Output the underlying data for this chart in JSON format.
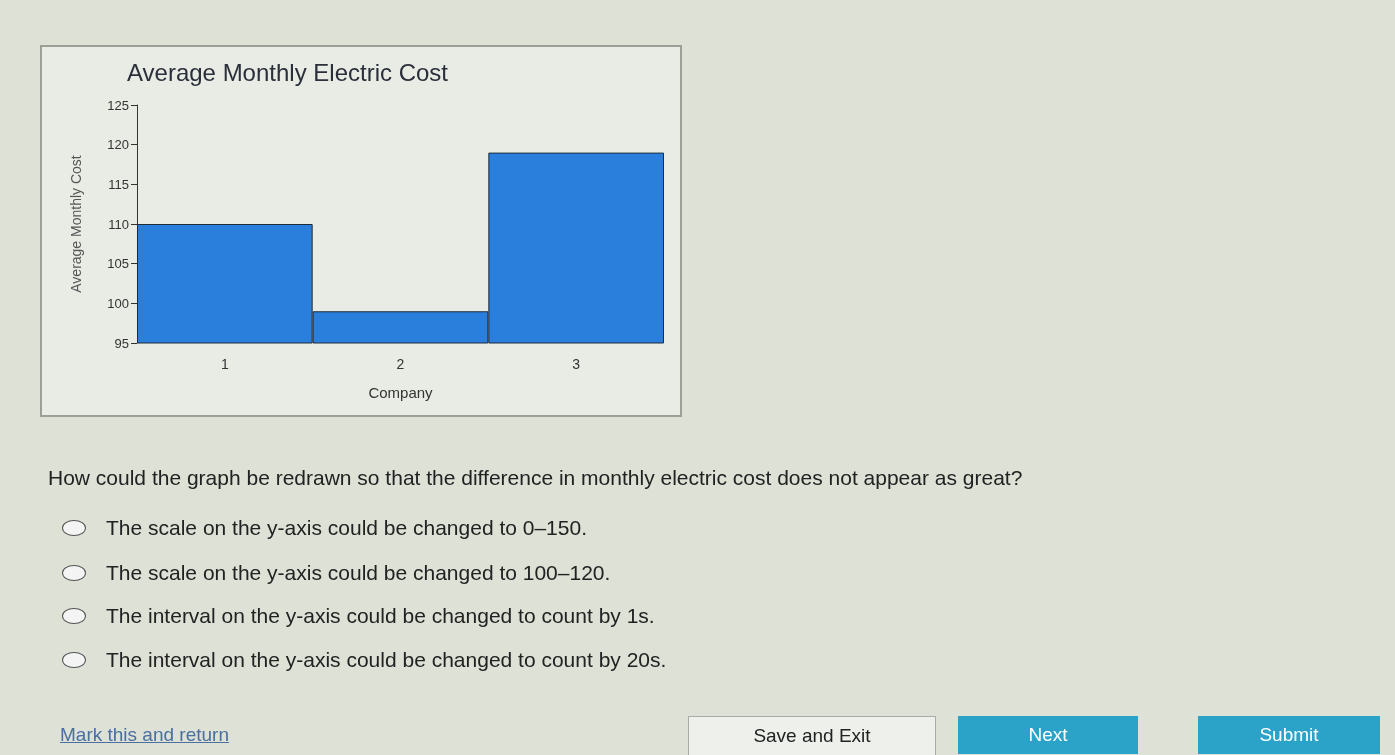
{
  "chart_data": {
    "type": "bar",
    "title": "Average Monthly Electric Cost",
    "xlabel": "Company",
    "ylabel": "Average Monthly Cost",
    "categories": [
      "1",
      "2",
      "3"
    ],
    "values": [
      110,
      99,
      119
    ],
    "color": "#2b7fdc",
    "ylim": [
      95,
      125
    ],
    "yticks": [
      95,
      100,
      105,
      110,
      115,
      120,
      125
    ],
    "grid": false,
    "annotations": [
      "How could the graph be redrawn so that the difference in monthly electric cost does not appear as great?",
      "The scale on the y-axis could be changed to 0–150.",
      "The scale on the y-axis could be changed to 100–120.",
      "The interval on the y-axis could be changed to count by 1s.",
      "The interval on the y-axis could be changed to count by 20s.",
      "Mark this and return",
      "Save and Exit",
      "Next",
      "Submit"
    ]
  }
}
